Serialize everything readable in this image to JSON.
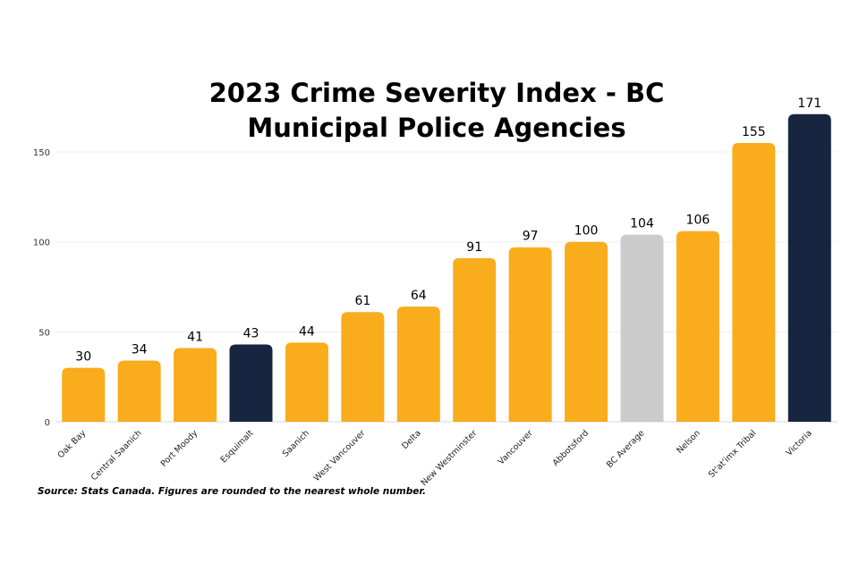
{
  "chart_data": {
    "type": "bar",
    "title_lines": [
      "2023 Crime Severity Index - BC",
      "Municipal Police Agencies"
    ],
    "categories": [
      "Oak Bay",
      "Central Saanich",
      "Port Moody",
      "Esquimalt",
      "Saanich",
      "West Vancouver",
      "Delta",
      "New Westminster",
      "Vancouver",
      "Abbotsford",
      "BC Average",
      "Nelson",
      "St'at'imx Tribal",
      "Victoria"
    ],
    "values": [
      30,
      34,
      41,
      43,
      44,
      61,
      64,
      91,
      97,
      100,
      104,
      106,
      155,
      171
    ],
    "bar_colors": [
      "#F9AC1C",
      "#F9AC1C",
      "#F9AC1C",
      "#172540",
      "#F9AC1C",
      "#F9AC1C",
      "#F9AC1C",
      "#F9AC1C",
      "#F9AC1C",
      "#F9AC1C",
      "#CCCCCC",
      "#F9AC1C",
      "#F9AC1C",
      "#172540"
    ],
    "yticks": [
      0,
      50,
      100,
      150
    ],
    "ylim": [
      0,
      180
    ],
    "grid": true,
    "legend": "none"
  },
  "source_note": "Source: Stats Canada. Figures are rounded to the nearest whole number."
}
